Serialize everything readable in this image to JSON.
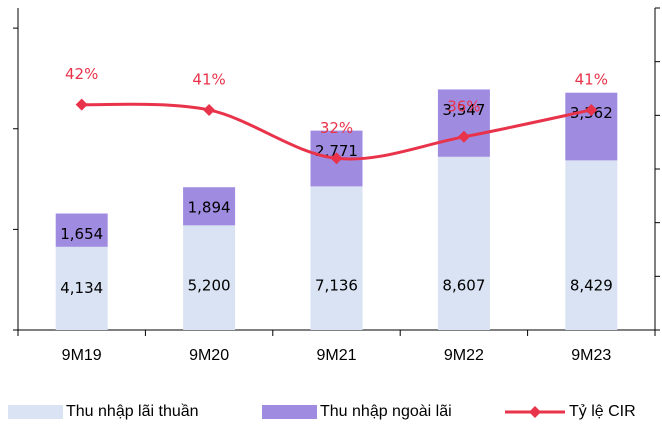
{
  "chart_data": {
    "type": "bar",
    "stacked": true,
    "categories": [
      "9M19",
      "9M20",
      "9M21",
      "9M22",
      "9M23"
    ],
    "series": [
      {
        "name": "Thu nhập lãi thuần",
        "color": "#dae3f3",
        "values": [
          4134,
          5200,
          7136,
          8607,
          8429
        ],
        "value_labels": [
          "4,134",
          "5,200",
          "7,136",
          "8,607",
          "8,429"
        ]
      },
      {
        "name": "Thu nhập ngoài lãi",
        "color": "#9f8be0",
        "values": [
          1654,
          1894,
          2771,
          3347,
          3362
        ],
        "value_labels": [
          "1,654",
          "1,894",
          "2,771",
          "3,347",
          "3,362"
        ]
      },
      {
        "name": "Tỷ lệ CIR",
        "color": "#e8334a",
        "type": "line",
        "axis": "y2",
        "values": [
          42,
          41,
          32,
          36,
          41
        ],
        "value_labels": [
          "42%",
          "41%",
          "32%",
          "36%",
          "41%"
        ]
      }
    ],
    "ylim": [
      0,
      16000
    ],
    "yticks": [
      0,
      5000,
      10000,
      15000
    ],
    "y2lim": [
      0,
      60
    ],
    "y2ticks": [
      0,
      10,
      20,
      30,
      40,
      50,
      60
    ],
    "legend": "bottom"
  }
}
